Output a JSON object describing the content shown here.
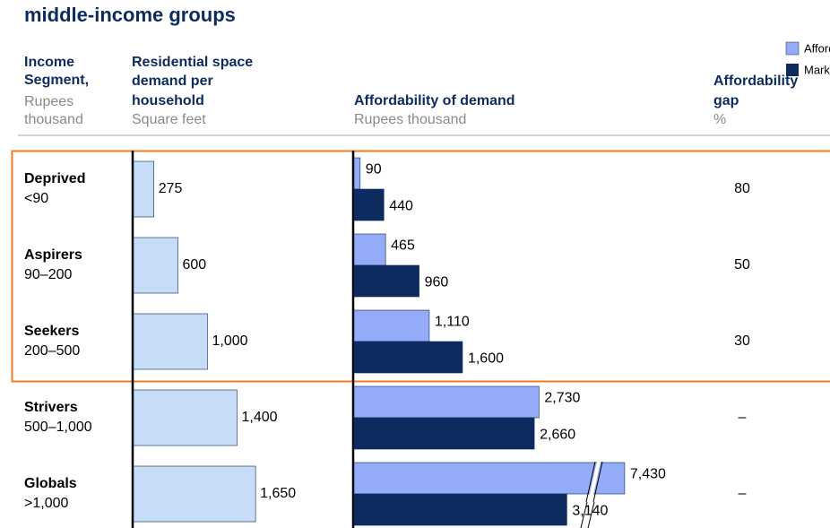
{
  "title": "middle-income groups",
  "legend": [
    "Affordability",
    "Market cost"
  ],
  "headers": {
    "segment": [
      "Income",
      "Segment,"
    ],
    "segment_unit": [
      "Rupees",
      "thousand"
    ],
    "space": [
      "Residential space",
      "demand per",
      "household"
    ],
    "space_unit": [
      "Square feet"
    ],
    "afford": [
      "Affordability of demand"
    ],
    "afford_unit": [
      "Rupees thousand"
    ],
    "gap": [
      "Affordability",
      "gap"
    ],
    "gap_unit": [
      "%"
    ]
  },
  "segments": [
    {
      "name": "Deprived",
      "range": "<90",
      "gap": "80"
    },
    {
      "name": "Aspirers",
      "range": "90–200",
      "gap": "50"
    },
    {
      "name": "Seekers",
      "range": "200–500",
      "gap": "30"
    },
    {
      "name": "Strivers",
      "range": "500–1,000",
      "gap": "–"
    },
    {
      "name": "Globals",
      "range": ">1,000",
      "gap": "–"
    }
  ],
  "chart_data": [
    {
      "type": "barh",
      "categories": [
        "Deprived",
        "Aspirers",
        "Seekers",
        "Strivers",
        "Globals"
      ],
      "values": [
        275,
        600,
        1000,
        1400,
        1650
      ],
      "value_labels": [
        "275",
        "600",
        "1,000",
        "1,400",
        "1,650"
      ],
      "color": "#c6dcf7"
    },
    {
      "type": "barh-grouped",
      "categories": [
        "Deprived",
        "Aspirers",
        "Seekers",
        "Strivers",
        "Globals"
      ],
      "xbreak": 3900,
      "series": [
        {
          "name": "Affordability",
          "color": "#94acf7",
          "values": [
            90,
            465,
            1110,
            2730,
            7430
          ],
          "value_labels": [
            "90",
            "465",
            "1,110",
            "2,730",
            "7,430"
          ]
        },
        {
          "name": "Market cost",
          "color": "#0d2b5e",
          "values": [
            440,
            960,
            1600,
            2660,
            3140
          ],
          "value_labels": [
            "440",
            "960",
            "1,600",
            "2,660",
            "3,140"
          ]
        }
      ]
    }
  ]
}
